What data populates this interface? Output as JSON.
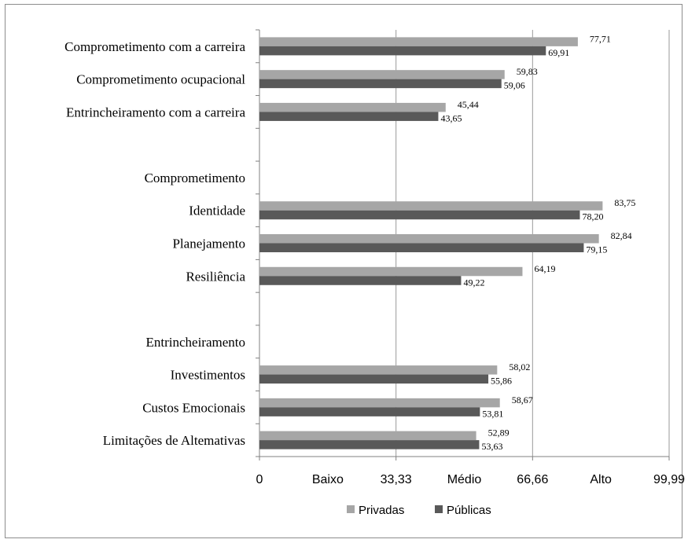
{
  "chart_data": {
    "type": "bar",
    "orientation": "horizontal",
    "categories": [
      "Comprometimento com a carreira",
      "Comprometimento ocupacional",
      "Entrincheiramento com a carreira",
      "",
      "Comprometimento",
      "Identidade",
      "Planejamento",
      "Resiliência",
      "",
      "Entrincheiramento",
      "Investimentos",
      "Custos Emocionais",
      "Limitações de Altemativas"
    ],
    "series": [
      {
        "name": "Privadas",
        "color": "#a6a6a6",
        "values": [
          77.71,
          59.83,
          45.44,
          null,
          null,
          83.75,
          82.84,
          64.19,
          null,
          null,
          58.02,
          58.67,
          52.89
        ],
        "labels": [
          "77,71",
          "59,83",
          "45,44",
          "",
          "",
          "83,75",
          "82,84",
          "64,19",
          "",
          "",
          "58,02",
          "58,67",
          "52,89"
        ]
      },
      {
        "name": "Públicas",
        "color": "#595959",
        "values": [
          69.91,
          59.06,
          43.65,
          null,
          null,
          78.2,
          79.15,
          49.22,
          null,
          null,
          55.86,
          53.81,
          53.63
        ],
        "labels": [
          "69,91",
          "59,06",
          "43,65",
          "",
          "",
          "78,20",
          "79,15",
          "49,22",
          "",
          "",
          "55,86",
          "53,81",
          "53,63"
        ]
      }
    ],
    "x_ticks": [
      {
        "value": 0,
        "label": "0"
      },
      {
        "value": 16.665,
        "label": "Baixo"
      },
      {
        "value": 33.33,
        "label": "33,33"
      },
      {
        "value": 49.995,
        "label": "Médio"
      },
      {
        "value": 66.66,
        "label": "66,66"
      },
      {
        "value": 83.325,
        "label": "Alto"
      },
      {
        "value": 99.99,
        "label": "99,99"
      }
    ],
    "gridlines": [
      33.33,
      66.66,
      99.99
    ],
    "xlim": [
      0,
      99.99
    ],
    "legend_position": "bottom",
    "legend": [
      "Privadas",
      "Públicas"
    ]
  }
}
